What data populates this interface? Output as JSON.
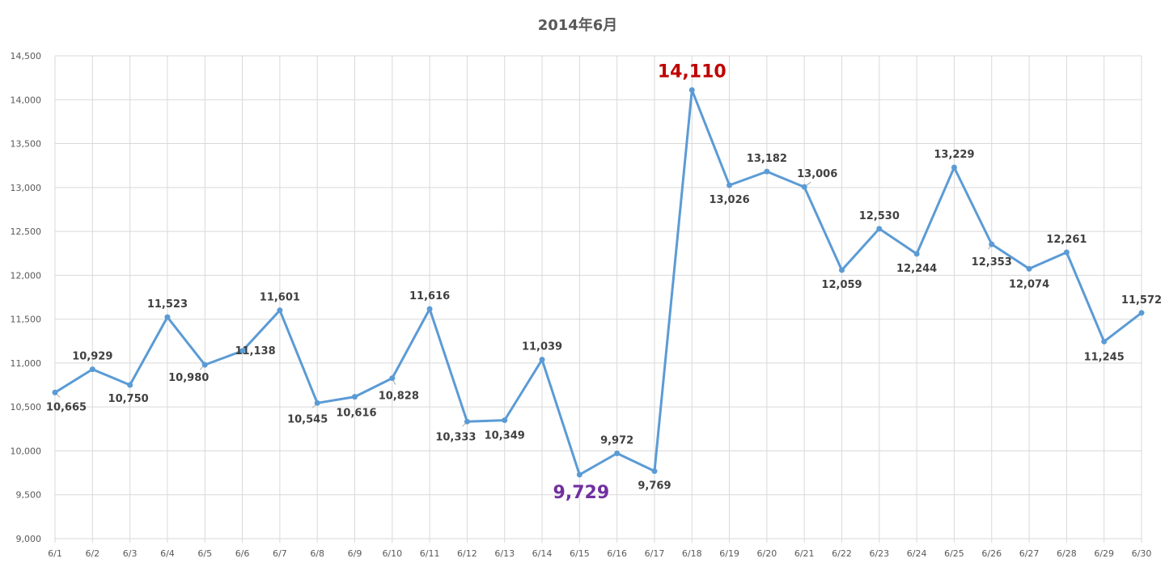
{
  "chart_data": {
    "type": "line",
    "title": "2014年6月",
    "categories": [
      "6/1",
      "6/2",
      "6/3",
      "6/4",
      "6/5",
      "6/6",
      "6/7",
      "6/8",
      "6/9",
      "6/10",
      "6/11",
      "6/12",
      "6/13",
      "6/14",
      "6/15",
      "6/16",
      "6/17",
      "6/18",
      "6/19",
      "6/20",
      "6/21",
      "6/22",
      "6/23",
      "6/24",
      "6/25",
      "6/26",
      "6/27",
      "6/28",
      "6/29",
      "6/30"
    ],
    "values": [
      10665,
      10929,
      10750,
      11523,
      10980,
      11138,
      11601,
      10545,
      10616,
      10828,
      11616,
      10333,
      10349,
      11039,
      9729,
      9972,
      9769,
      14110,
      13026,
      13182,
      13006,
      12059,
      12530,
      12244,
      13229,
      12353,
      12074,
      12261,
      11245,
      11572
    ],
    "labels": [
      "10,665",
      "10,929",
      "10,750",
      "11,523",
      "10,980",
      "11,138",
      "11,601",
      "10,545",
      "10,616",
      "10,828",
      "11,616",
      "10,333",
      "10,349",
      "11,039",
      "9,729",
      "9,972",
      "9,769",
      "14,110",
      "13,026",
      "13,182",
      "13,006",
      "12,059",
      "12,530",
      "12,244",
      "13,229",
      "12,353",
      "12,074",
      "12,261",
      "11,245",
      "11,572"
    ],
    "ylim": [
      9000,
      14500
    ],
    "yticks": [
      "9,000",
      "9,500",
      "10,000",
      "10,500",
      "11,000",
      "11,500",
      "12,000",
      "12,500",
      "13,000",
      "13,500",
      "14,000",
      "14,500"
    ],
    "grid": true,
    "xlabel": "",
    "ylabel": "",
    "colors": {
      "line": "#5b9bd5",
      "max_label": "#c00000",
      "min_label": "#7030a0",
      "grid": "#d9d9d9",
      "text": "#404040"
    }
  }
}
